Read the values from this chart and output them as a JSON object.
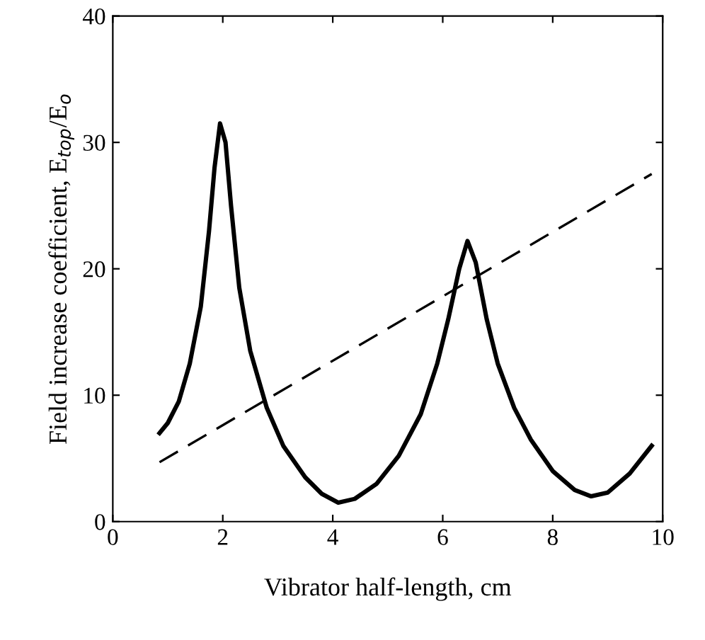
{
  "chart_data": {
    "type": "line",
    "xlabel": "Vibrator half-length, cm",
    "ylabel": "Field increase coefficient, E$_{top}$/E$_{o}$",
    "xlim": [
      0,
      10
    ],
    "ylim": [
      0,
      40
    ],
    "xticks": [
      0,
      2,
      4,
      6,
      8,
      10
    ],
    "yticks": [
      0,
      10,
      20,
      30,
      40
    ],
    "grid": false,
    "legend": false,
    "marker": "none",
    "series": [
      {
        "color": "#000000",
        "line_style": "solid",
        "x": [
          0.85,
          1.0,
          1.2,
          1.4,
          1.6,
          1.75,
          1.85,
          1.95,
          2.05,
          2.15,
          2.3,
          2.5,
          2.8,
          3.1,
          3.5,
          3.8,
          4.1,
          4.4,
          4.8,
          5.2,
          5.6,
          5.9,
          6.1,
          6.3,
          6.45,
          6.6,
          6.8,
          7.0,
          7.3,
          7.6,
          8.0,
          8.4,
          8.7,
          9.0,
          9.4,
          9.8
        ],
        "values": [
          7.0,
          7.8,
          9.5,
          12.5,
          17,
          23,
          28,
          31.5,
          30,
          25,
          18.5,
          13.5,
          9,
          6,
          3.5,
          2.2,
          1.5,
          1.8,
          3,
          5.2,
          8.5,
          12.5,
          16,
          20,
          22.2,
          20.5,
          16,
          12.5,
          9,
          6.5,
          4,
          2.5,
          2,
          2.3,
          3.8,
          6
        ]
      },
      {
        "color": "#000000",
        "line_style": "dashed",
        "x": [
          0.85,
          9.8
        ],
        "values": [
          4.7,
          27.5
        ]
      }
    ]
  }
}
